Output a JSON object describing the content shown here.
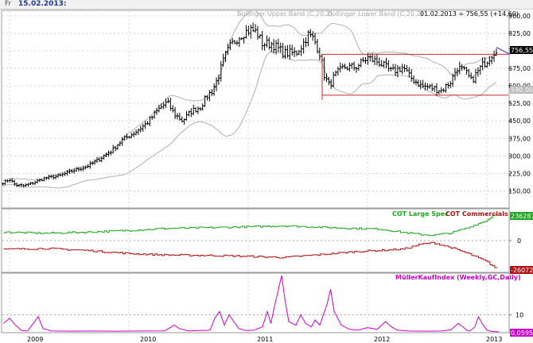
{
  "header": {
    "day_label": "Fr",
    "date": "15.02.2013:"
  },
  "colors": {
    "price": "#000000",
    "bands": "#b0b0b0",
    "channel": "#d12a2a",
    "large_spec": "#1fa51f",
    "commercials": "#b01010",
    "mueller": "#cc00cc",
    "grid": "#c8c8c8",
    "arrow": "#2a2acc"
  },
  "chart_data": [
    {
      "type": "ohlc",
      "legend": [
        "Bollinger Upper Band (C,20,2)",
        "Bollinger Lower Band (C,20,2)"
      ],
      "readout": "01.02.2013 = 756,55 (+14,60)",
      "last_value_label": "756,55",
      "band_label": "590,00",
      "ylim": [
        80,
        920
      ],
      "y_ticks": [
        "900,00",
        "825,00",
        "750,00",
        "675,00",
        "600,00",
        "525,00",
        "450,00",
        "375,00",
        "300,00",
        "225,00",
        "150,00"
      ],
      "channel": {
        "x_start": 2011.62,
        "x_end": 2013.1,
        "upper": 735,
        "lower": 560
      },
      "x_ticks": [
        "2009",
        "2010",
        "2011",
        "2012",
        "2013"
      ],
      "xlim": [
        2008.94,
        2013.18
      ],
      "anchors": [
        [
          2008.95,
          185
        ],
        [
          2009.0,
          200
        ],
        [
          2009.05,
          175
        ],
        [
          2009.12,
          172
        ],
        [
          2009.2,
          185
        ],
        [
          2009.3,
          205
        ],
        [
          2009.42,
          215
        ],
        [
          2009.55,
          240
        ],
        [
          2009.65,
          255
        ],
        [
          2009.75,
          285
        ],
        [
          2009.85,
          320
        ],
        [
          2009.95,
          370
        ],
        [
          2010.05,
          400
        ],
        [
          2010.15,
          440
        ],
        [
          2010.25,
          500
        ],
        [
          2010.32,
          530
        ],
        [
          2010.38,
          480
        ],
        [
          2010.45,
          450
        ],
        [
          2010.52,
          490
        ],
        [
          2010.6,
          510
        ],
        [
          2010.66,
          560
        ],
        [
          2010.7,
          580
        ],
        [
          2010.75,
          640
        ],
        [
          2010.8,
          720
        ],
        [
          2010.85,
          770
        ],
        [
          2010.9,
          800
        ],
        [
          2010.97,
          830
        ],
        [
          2011.02,
          840
        ],
        [
          2011.07,
          830
        ],
        [
          2011.12,
          780
        ],
        [
          2011.2,
          780
        ],
        [
          2011.3,
          740
        ],
        [
          2011.4,
          740
        ],
        [
          2011.46,
          780
        ],
        [
          2011.5,
          820
        ],
        [
          2011.55,
          800
        ],
        [
          2011.6,
          740
        ],
        [
          2011.64,
          640
        ],
        [
          2011.68,
          600
        ],
        [
          2011.72,
          640
        ],
        [
          2011.8,
          680
        ],
        [
          2011.9,
          680
        ],
        [
          2012.0,
          720
        ],
        [
          2012.1,
          700
        ],
        [
          2012.2,
          660
        ],
        [
          2012.3,
          680
        ],
        [
          2012.35,
          640
        ],
        [
          2012.45,
          600
        ],
        [
          2012.55,
          590
        ],
        [
          2012.62,
          580
        ],
        [
          2012.7,
          620
        ],
        [
          2012.75,
          680
        ],
        [
          2012.82,
          660
        ],
        [
          2012.87,
          620
        ],
        [
          2012.95,
          680
        ],
        [
          2013.02,
          720
        ],
        [
          2013.08,
          760
        ]
      ]
    },
    {
      "type": "step-line",
      "legend": [
        "COT Large Spec",
        "COT Commercials"
      ],
      "series": [
        {
          "name": "COT Large Spec",
          "last_value_label": "236287",
          "anchors": [
            [
              2008.95,
              0.6
            ],
            [
              2009.3,
              0.52
            ],
            [
              2009.65,
              0.6
            ],
            [
              2010.0,
              0.72
            ],
            [
              2010.3,
              0.86
            ],
            [
              2010.7,
              0.92
            ],
            [
              2011.0,
              0.98
            ],
            [
              2011.3,
              1.05
            ],
            [
              2011.6,
              0.95
            ],
            [
              2011.9,
              0.86
            ],
            [
              2012.1,
              0.82
            ],
            [
              2012.3,
              0.58
            ],
            [
              2012.45,
              0.42
            ],
            [
              2012.55,
              0.38
            ],
            [
              2012.7,
              0.55
            ],
            [
              2012.85,
              0.95
            ],
            [
              2013.0,
              1.45
            ],
            [
              2013.08,
              2.0
            ]
          ]
        },
        {
          "name": "COT Commercials",
          "last_value_label": "-260723",
          "anchors": [
            [
              2008.95,
              -0.62
            ],
            [
              2009.3,
              -0.56
            ],
            [
              2009.65,
              -0.7
            ],
            [
              2010.0,
              -0.92
            ],
            [
              2010.3,
              -1.02
            ],
            [
              2010.7,
              -1.06
            ],
            [
              2011.0,
              -1.12
            ],
            [
              2011.3,
              -1.2
            ],
            [
              2011.6,
              -1.0
            ],
            [
              2011.9,
              -0.78
            ],
            [
              2012.1,
              -0.7
            ],
            [
              2012.3,
              -0.6
            ],
            [
              2012.45,
              -0.25
            ],
            [
              2012.55,
              -0.15
            ],
            [
              2012.7,
              -0.5
            ],
            [
              2012.85,
              -0.95
            ],
            [
              2013.0,
              -1.5
            ],
            [
              2013.08,
              -2.0
            ]
          ]
        }
      ],
      "ylim": [
        -2.2,
        2.2
      ],
      "y_ticks": [
        "0"
      ]
    },
    {
      "type": "line",
      "legend": [
        "MüllerKaufIndex (Weekly,GC,Daily)"
      ],
      "last_value_label": "0,0595",
      "ylim": [
        0,
        34
      ],
      "y_ticks": [
        "10"
      ],
      "points": [
        [
          2008.95,
          5
        ],
        [
          2009.0,
          8
        ],
        [
          2009.05,
          4
        ],
        [
          2009.1,
          0.8
        ],
        [
          2009.15,
          0.6
        ],
        [
          2009.2,
          5
        ],
        [
          2009.24,
          9
        ],
        [
          2009.28,
          2
        ],
        [
          2009.35,
          0.6
        ],
        [
          2009.5,
          0.4
        ],
        [
          2009.7,
          0.5
        ],
        [
          2009.9,
          0.4
        ],
        [
          2010.1,
          0.5
        ],
        [
          2010.3,
          0.6
        ],
        [
          2010.38,
          4
        ],
        [
          2010.42,
          2
        ],
        [
          2010.5,
          0.6
        ],
        [
          2010.68,
          1
        ],
        [
          2010.72,
          8
        ],
        [
          2010.76,
          12
        ],
        [
          2010.8,
          4
        ],
        [
          2010.84,
          10
        ],
        [
          2010.88,
          6
        ],
        [
          2010.92,
          2
        ],
        [
          2010.98,
          0.8
        ],
        [
          2011.05,
          1
        ],
        [
          2011.12,
          3
        ],
        [
          2011.16,
          12
        ],
        [
          2011.19,
          5
        ],
        [
          2011.22,
          15
        ],
        [
          2011.25,
          24
        ],
        [
          2011.28,
          33
        ],
        [
          2011.31,
          18
        ],
        [
          2011.34,
          6
        ],
        [
          2011.4,
          4
        ],
        [
          2011.44,
          10
        ],
        [
          2011.48,
          5
        ],
        [
          2011.53,
          3
        ],
        [
          2011.56,
          7
        ],
        [
          2011.6,
          4
        ],
        [
          2011.66,
          16
        ],
        [
          2011.69,
          25
        ],
        [
          2011.72,
          12
        ],
        [
          2011.78,
          4
        ],
        [
          2011.85,
          1.5
        ],
        [
          2011.92,
          1
        ],
        [
          2012.0,
          2.5
        ],
        [
          2012.08,
          1.5
        ],
        [
          2012.15,
          6
        ],
        [
          2012.2,
          3
        ],
        [
          2012.25,
          1
        ],
        [
          2012.35,
          0.5
        ],
        [
          2012.5,
          0.4
        ],
        [
          2012.62,
          0.5
        ],
        [
          2012.7,
          1.2
        ],
        [
          2012.76,
          5
        ],
        [
          2012.8,
          3
        ],
        [
          2012.83,
          1
        ],
        [
          2012.86,
          0.6
        ],
        [
          2012.9,
          3
        ],
        [
          2012.93,
          9
        ],
        [
          2012.96,
          5
        ],
        [
          2013.0,
          1
        ],
        [
          2013.04,
          0.3
        ],
        [
          2013.1,
          0.06
        ]
      ]
    }
  ]
}
